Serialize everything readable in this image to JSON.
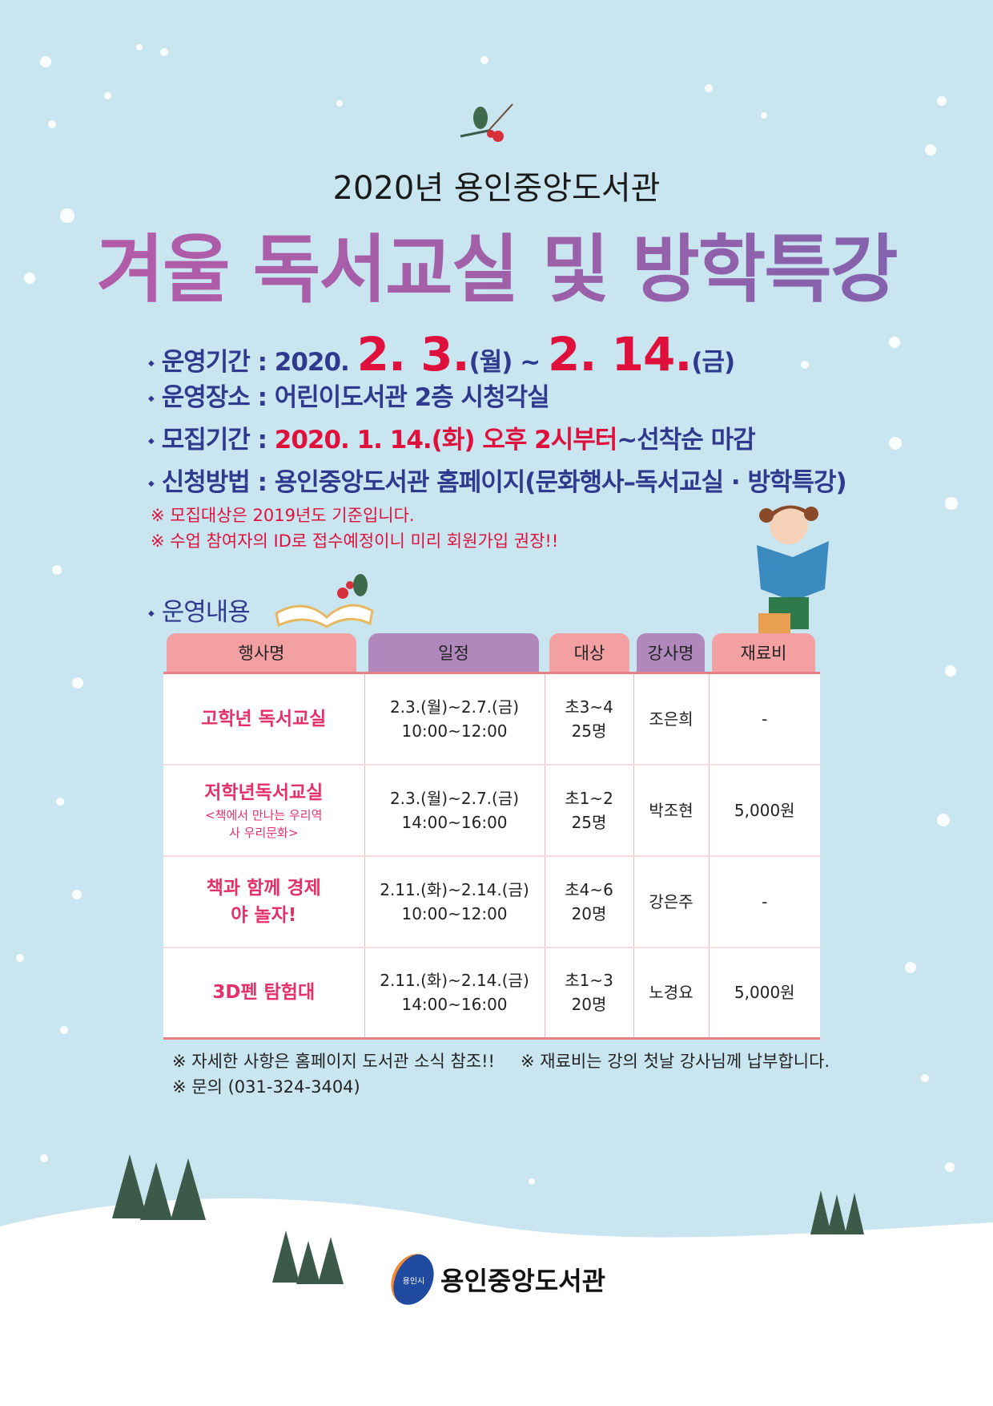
{
  "header": {
    "subtitle": "2020년 용인중앙도서관",
    "title": "겨울 독서교실 및 방학특강"
  },
  "info": [
    {
      "label": "운영기간 : ",
      "pre": "2020. ",
      "d1": "2. 3.",
      "w1": "(월) ~ ",
      "d2": "2. 14.",
      "w2": "(금)"
    },
    {
      "label": "운영장소 : ",
      "value": "어린이도서관 2층 시청각실"
    },
    {
      "label": "모집기간 : ",
      "value_red": "2020. 1. 14.(화) 오후 2시부터",
      "value": "~선착순 마감"
    },
    {
      "label": "신청방법 : ",
      "value": "용인중앙도서관 홈페이지(문화행사–독서교실 · 방학특강)"
    }
  ],
  "notes": [
    "※ 모집대상은 2019년도 기준입니다.",
    "※ 수업 참여자의 ID로 접수예정이니 미리 회원가입 권장!!"
  ],
  "section_title": "운영내용",
  "table": {
    "headers": [
      "행사명",
      "일정",
      "대상",
      "강사명",
      "재료비"
    ],
    "rows": [
      {
        "name": "고학년 독서교실",
        "sub": "",
        "date": "2.3.(월)~2.7.(금)",
        "time": "10:00~12:00",
        "grade": "초3~4",
        "count": "25명",
        "teacher": "조은희",
        "fee": "-"
      },
      {
        "name": "저학년독서교실",
        "sub": "<책에서 만나는 우리역사 우리문화>",
        "date": "2.3.(월)~2.7.(금)",
        "time": "14:00~16:00",
        "grade": "초1~2",
        "count": "25명",
        "teacher": "박조현",
        "fee": "5,000원"
      },
      {
        "name": "책과 함께 경제야 놀자!",
        "sub": "",
        "date": "2.11.(화)~2.14.(금)",
        "time": "10:00~12:00",
        "grade": "초4~6",
        "count": "20명",
        "teacher": "강은주",
        "fee": "-"
      },
      {
        "name": "3D펜 탐험대",
        "sub": "",
        "date": "2.11.(화)~2.14.(금)",
        "time": "14:00~16:00",
        "grade": "초1~3",
        "count": "20명",
        "teacher": "노경요",
        "fee": "5,000원"
      }
    ]
  },
  "footer": {
    "note1": "※ 자세한 사항은 홈페이지 도서관 소식 참조!!",
    "note2": "※ 재료비는 강의 첫날 강사님께 납부합니다.",
    "contact": "※ 문의 (031-324-3404)"
  },
  "logo": {
    "emblem_text": "용인시",
    "name": "용인중앙도서관"
  },
  "colors": {
    "background": "#c9e6f0",
    "navy": "#2f3a8f",
    "red": "#e0103c",
    "pink_header": "#f2a0a2",
    "purple_header": "#b088bc"
  }
}
